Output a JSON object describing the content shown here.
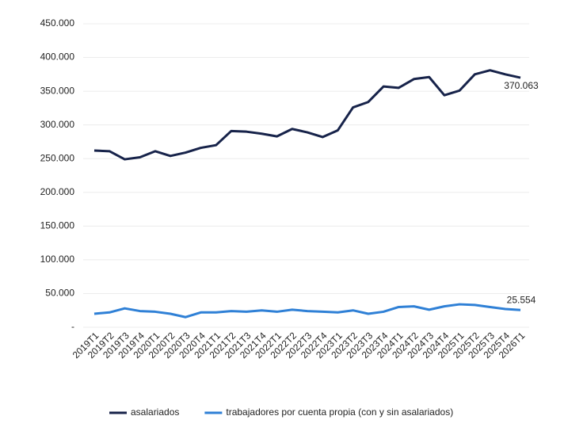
{
  "chart_data": {
    "type": "line",
    "categories": [
      "2019T1",
      "2019T2",
      "2019T3",
      "2019T4",
      "2020T1",
      "2020T2",
      "2020T3",
      "2020T4",
      "2021T1",
      "2021T2",
      "2021T3",
      "2021T4",
      "2022T1",
      "2022T2",
      "2022T3",
      "2022T4",
      "2023T1",
      "2023T2",
      "2023T3",
      "2023T4",
      "2024T1",
      "2024T2",
      "2024T3",
      "2024T4",
      "2025T1",
      "2025T2",
      "2025T3",
      "2025T4",
      "2026T1"
    ],
    "series": [
      {
        "name": "asalariados",
        "color": "#17234a",
        "values": [
          262000,
          261000,
          249000,
          252000,
          261000,
          254000,
          259000,
          266000,
          270000,
          291000,
          290000,
          287000,
          283000,
          294000,
          289000,
          282000,
          292000,
          326000,
          334000,
          357000,
          355000,
          368000,
          371000,
          344000,
          351000,
          375000,
          381000,
          375000,
          370063
        ],
        "value_labels": [
          null,
          null,
          null,
          null,
          null,
          null,
          null,
          null,
          null,
          null,
          null,
          null,
          null,
          null,
          null,
          null,
          null,
          null,
          null,
          null,
          null,
          null,
          null,
          null,
          null,
          null,
          null,
          null,
          "370.063"
        ]
      },
      {
        "name": "trabajadores por cuenta propia (con y sin asalariados)",
        "color": "#2f80d6",
        "values": [
          20000,
          22000,
          28000,
          24000,
          23000,
          20000,
          15000,
          22000,
          22000,
          24000,
          23000,
          25000,
          23000,
          26000,
          24000,
          23000,
          22000,
          25000,
          20000,
          23000,
          30000,
          31000,
          26000,
          31000,
          34000,
          33000,
          30000,
          27000,
          25554
        ],
        "value_labels": [
          null,
          null,
          null,
          null,
          null,
          null,
          null,
          null,
          null,
          null,
          null,
          null,
          null,
          null,
          null,
          null,
          null,
          null,
          null,
          null,
          null,
          null,
          null,
          null,
          null,
          null,
          null,
          null,
          "25.554"
        ]
      }
    ],
    "ylim": [
      0,
      450000
    ],
    "yticks": [
      {
        "value": 0,
        "label": "-"
      },
      {
        "value": 50000,
        "label": "50.000"
      },
      {
        "value": 100000,
        "label": "100.000"
      },
      {
        "value": 150000,
        "label": "150.000"
      },
      {
        "value": 200000,
        "label": "200.000"
      },
      {
        "value": 250000,
        "label": "250.000"
      },
      {
        "value": 300000,
        "label": "300.000"
      },
      {
        "value": 350000,
        "label": "350.000"
      },
      {
        "value": 400000,
        "label": "400.000"
      },
      {
        "value": 450000,
        "label": "450.000"
      }
    ],
    "grid": true,
    "legend": "bottom"
  }
}
